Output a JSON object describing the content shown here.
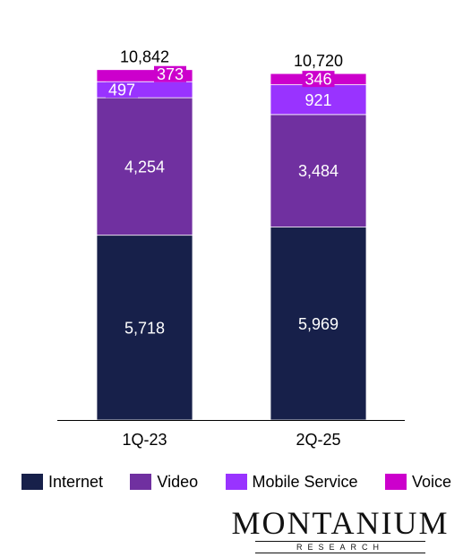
{
  "chart_data": {
    "type": "bar",
    "stacked": true,
    "categories": [
      "1Q-23",
      "2Q-25"
    ],
    "totals": [
      "10,842",
      "10,720"
    ],
    "series": [
      {
        "name": "Internet",
        "color": "#17204a",
        "values": [
          5718,
          5969
        ],
        "labels": [
          "5,718",
          "5,969"
        ]
      },
      {
        "name": "Video",
        "color": "#7030a0",
        "values": [
          4254,
          3484
        ],
        "labels": [
          "4,254",
          "3,484"
        ]
      },
      {
        "name": "Mobile Service",
        "color": "#9933ff",
        "values": [
          497,
          921
        ],
        "labels": [
          "497",
          "921"
        ]
      },
      {
        "name": "Voice",
        "color": "#cc00cc",
        "values": [
          373,
          346
        ],
        "labels": [
          "373",
          "346"
        ]
      }
    ],
    "ylim": [
      0,
      11500
    ],
    "grid": false,
    "legend_position": "bottom"
  },
  "logo": {
    "name": "MONTANIUM",
    "sub": "RESEARCH"
  }
}
